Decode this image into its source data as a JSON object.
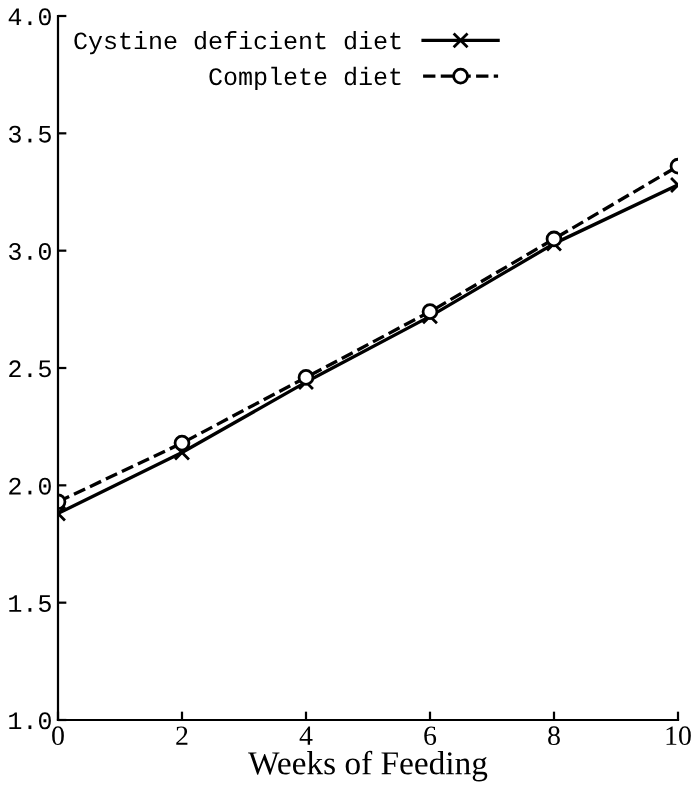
{
  "chart_data": {
    "type": "line",
    "xlabel": "Weeks of Feeding",
    "x": [
      0,
      2,
      4,
      6,
      8,
      10
    ],
    "series": [
      {
        "name": "Cystine deficient diet",
        "color": "#000000",
        "values": [
          1.88,
          2.14,
          2.44,
          2.72,
          3.03,
          3.28
        ],
        "marker": "cross",
        "line_style": "solid"
      },
      {
        "name": "Complete diet",
        "color": "#000000",
        "values": [
          1.93,
          2.18,
          2.46,
          2.74,
          3.05,
          3.36
        ],
        "marker": "circle",
        "line_style": "dashed"
      }
    ],
    "xlim": [
      0,
      10
    ],
    "xticks": [
      0,
      2,
      4,
      6,
      8,
      10
    ],
    "ylim": [
      1.0,
      4.0
    ],
    "yticks": [
      {
        "value": 1.0,
        "label": "1.0"
      },
      {
        "value": 1.5,
        "label": "1.5"
      },
      {
        "value": 2.0,
        "label": "2.0"
      },
      {
        "value": 2.5,
        "label": "2.5"
      },
      {
        "value": 3.0,
        "label": "3.0"
      },
      {
        "value": 3.5,
        "label": "3.5"
      },
      {
        "value": 4.0,
        "label": "4.0"
      }
    ],
    "grid": false,
    "legend": "top left"
  }
}
